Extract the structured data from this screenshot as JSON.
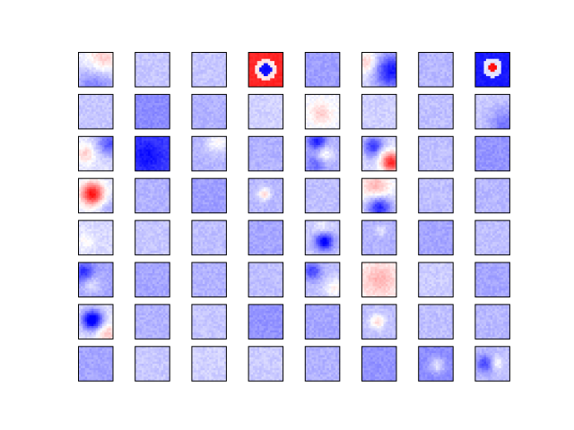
{
  "chart_data": {
    "type": "heatmap",
    "title": "",
    "layout": {
      "rows": 8,
      "cols": 8
    },
    "colormap": {
      "negative": "#0000ff",
      "zero": "#ffffff",
      "positive": "#ff0000"
    },
    "tick_labels": "none",
    "axis_frame": "black",
    "tiles": [
      {
        "row": 0,
        "col": 0,
        "base": -0.08,
        "blobs": [
          {
            "cx": 0.7,
            "cy": 0.25,
            "s": 0.35,
            "a": 0.35
          },
          {
            "cx": 0.5,
            "cy": 0.95,
            "s": 0.45,
            "a": -0.45
          }
        ]
      },
      {
        "row": 0,
        "col": 1,
        "base": -0.22
      },
      {
        "row": 0,
        "col": 2,
        "base": -0.22
      },
      {
        "row": 0,
        "col": 3,
        "base": 0.0,
        "ring": {
          "cx": 0.5,
          "cy": 0.5,
          "center": -0.95,
          "ring": 0.1,
          "outer": 0.85,
          "r1": 0.18,
          "r2": 0.32
        }
      },
      {
        "row": 0,
        "col": 4,
        "base": -0.38
      },
      {
        "row": 0,
        "col": 5,
        "base": -0.12,
        "blobs": [
          {
            "cx": 0.15,
            "cy": 0.3,
            "s": 0.22,
            "a": 0.35
          },
          {
            "cx": 0.85,
            "cy": 0.55,
            "s": 0.35,
            "a": -0.8
          }
        ]
      },
      {
        "row": 0,
        "col": 6,
        "base": -0.28
      },
      {
        "row": 0,
        "col": 7,
        "base": -0.1,
        "ring": {
          "cx": 0.5,
          "cy": 0.45,
          "center": 0.95,
          "ring": -0.1,
          "outer": -0.9,
          "r1": 0.12,
          "r2": 0.28
        }
      },
      {
        "row": 1,
        "col": 0,
        "base": -0.22
      },
      {
        "row": 1,
        "col": 1,
        "base": -0.45
      },
      {
        "row": 1,
        "col": 2,
        "base": -0.3
      },
      {
        "row": 1,
        "col": 3,
        "base": -0.18
      },
      {
        "row": 1,
        "col": 4,
        "base": -0.05,
        "blobs": [
          {
            "cx": 0.45,
            "cy": 0.55,
            "s": 0.22,
            "a": 0.25
          }
        ]
      },
      {
        "row": 1,
        "col": 5,
        "base": -0.18
      },
      {
        "row": 1,
        "col": 6,
        "base": -0.25
      },
      {
        "row": 1,
        "col": 7,
        "base": -0.2,
        "blobs": [
          {
            "cx": 0.9,
            "cy": 0.9,
            "s": 0.35,
            "a": -0.35
          }
        ]
      },
      {
        "row": 2,
        "col": 0,
        "base": -0.12,
        "blobs": [
          {
            "cx": 0.2,
            "cy": 0.5,
            "s": 0.2,
            "a": 0.3
          },
          {
            "cx": 0.9,
            "cy": 0.2,
            "s": 0.25,
            "a": -0.55
          }
        ]
      },
      {
        "row": 2,
        "col": 1,
        "base": -0.75,
        "blobs": [
          {
            "cx": 0.35,
            "cy": 0.55,
            "s": 0.3,
            "a": -0.2
          }
        ]
      },
      {
        "row": 2,
        "col": 2,
        "base": -0.3,
        "blobs": [
          {
            "cx": 0.75,
            "cy": 0.15,
            "s": 0.25,
            "a": 0.3
          }
        ]
      },
      {
        "row": 2,
        "col": 3,
        "base": -0.3
      },
      {
        "row": 2,
        "col": 4,
        "base": -0.3,
        "blobs": [
          {
            "cx": 0.35,
            "cy": 0.15,
            "s": 0.18,
            "a": -0.6
          },
          {
            "cx": 0.55,
            "cy": 0.5,
            "s": 0.18,
            "a": 0.35
          },
          {
            "cx": 0.3,
            "cy": 0.8,
            "s": 0.2,
            "a": -0.3
          }
        ]
      },
      {
        "row": 2,
        "col": 5,
        "base": -0.15,
        "blobs": [
          {
            "cx": 0.35,
            "cy": 0.3,
            "s": 0.2,
            "a": -0.7
          },
          {
            "cx": 0.85,
            "cy": 0.75,
            "s": 0.2,
            "a": 1.0
          },
          {
            "cx": 0.55,
            "cy": 0.45,
            "s": 0.15,
            "a": 0.2
          }
        ]
      },
      {
        "row": 2,
        "col": 6,
        "base": -0.25
      },
      {
        "row": 2,
        "col": 7,
        "base": -0.42
      },
      {
        "row": 3,
        "col": 0,
        "base": -0.1,
        "blobs": [
          {
            "cx": 0.4,
            "cy": 0.45,
            "s": 0.22,
            "a": 1.05
          },
          {
            "cx": 0.9,
            "cy": 0.9,
            "s": 0.25,
            "a": -0.2
          }
        ]
      },
      {
        "row": 3,
        "col": 1,
        "base": -0.3
      },
      {
        "row": 3,
        "col": 2,
        "base": -0.38
      },
      {
        "row": 3,
        "col": 3,
        "base": -0.28,
        "blobs": [
          {
            "cx": 0.45,
            "cy": 0.45,
            "s": 0.12,
            "a": 0.45
          }
        ]
      },
      {
        "row": 3,
        "col": 4,
        "base": -0.25
      },
      {
        "row": 3,
        "col": 5,
        "base": -0.1,
        "blobs": [
          {
            "cx": 0.4,
            "cy": 0.25,
            "s": 0.3,
            "a": 0.4
          },
          {
            "cx": 0.5,
            "cy": 0.85,
            "s": 0.25,
            "a": -0.8
          }
        ]
      },
      {
        "row": 3,
        "col": 6,
        "base": -0.25
      },
      {
        "row": 3,
        "col": 7,
        "base": -0.28
      },
      {
        "row": 4,
        "col": 0,
        "base": -0.15,
        "blobs": [
          {
            "cx": 0.2,
            "cy": 0.6,
            "s": 0.2,
            "a": 0.15
          }
        ]
      },
      {
        "row": 4,
        "col": 1,
        "base": -0.22
      },
      {
        "row": 4,
        "col": 2,
        "base": -0.25
      },
      {
        "row": 4,
        "col": 3,
        "base": -0.35
      },
      {
        "row": 4,
        "col": 4,
        "base": -0.22,
        "blobs": [
          {
            "cx": 0.55,
            "cy": 0.6,
            "s": 0.18,
            "a": -0.85
          },
          {
            "cx": 0.5,
            "cy": 0.25,
            "s": 0.18,
            "a": 0.2
          }
        ]
      },
      {
        "row": 4,
        "col": 5,
        "base": -0.3,
        "blobs": [
          {
            "cx": 0.55,
            "cy": 0.3,
            "s": 0.12,
            "a": 0.2
          }
        ]
      },
      {
        "row": 4,
        "col": 6,
        "base": -0.35
      },
      {
        "row": 4,
        "col": 7,
        "base": -0.25
      },
      {
        "row": 5,
        "col": 0,
        "base": -0.35,
        "blobs": [
          {
            "cx": 0.15,
            "cy": 0.3,
            "s": 0.2,
            "a": -0.5
          },
          {
            "cx": 0.35,
            "cy": 0.6,
            "s": 0.2,
            "a": 0.25
          }
        ]
      },
      {
        "row": 5,
        "col": 1,
        "base": -0.35
      },
      {
        "row": 5,
        "col": 2,
        "base": -0.3
      },
      {
        "row": 5,
        "col": 3,
        "base": -0.25
      },
      {
        "row": 5,
        "col": 4,
        "base": -0.25,
        "blobs": [
          {
            "cx": 0.2,
            "cy": 0.25,
            "s": 0.18,
            "a": -0.5
          },
          {
            "cx": 0.85,
            "cy": 0.75,
            "s": 0.2,
            "a": 0.3
          }
        ]
      },
      {
        "row": 5,
        "col": 5,
        "base": 0.05,
        "blobs": [
          {
            "cx": 0.5,
            "cy": 0.5,
            "s": 0.3,
            "a": 0.25
          }
        ]
      },
      {
        "row": 5,
        "col": 6,
        "base": -0.2
      },
      {
        "row": 5,
        "col": 7,
        "base": -0.35
      },
      {
        "row": 6,
        "col": 0,
        "base": -0.12,
        "blobs": [
          {
            "cx": 0.4,
            "cy": 0.45,
            "s": 0.2,
            "a": -1.05
          },
          {
            "cx": 0.85,
            "cy": 0.85,
            "s": 0.22,
            "a": 0.35
          }
        ]
      },
      {
        "row": 6,
        "col": 1,
        "base": -0.3
      },
      {
        "row": 6,
        "col": 2,
        "base": -0.22
      },
      {
        "row": 6,
        "col": 3,
        "base": -0.42
      },
      {
        "row": 6,
        "col": 4,
        "base": -0.35
      },
      {
        "row": 6,
        "col": 5,
        "base": -0.25,
        "blobs": [
          {
            "cx": 0.45,
            "cy": 0.5,
            "s": 0.15,
            "a": 0.4
          }
        ]
      },
      {
        "row": 6,
        "col": 6,
        "base": -0.25
      },
      {
        "row": 6,
        "col": 7,
        "base": -0.28
      },
      {
        "row": 7,
        "col": 0,
        "base": -0.35
      },
      {
        "row": 7,
        "col": 1,
        "base": -0.22
      },
      {
        "row": 7,
        "col": 2,
        "base": -0.18
      },
      {
        "row": 7,
        "col": 3,
        "base": -0.2
      },
      {
        "row": 7,
        "col": 4,
        "base": -0.3
      },
      {
        "row": 7,
        "col": 5,
        "base": -0.42
      },
      {
        "row": 7,
        "col": 6,
        "base": -0.45,
        "blobs": [
          {
            "cx": 0.55,
            "cy": 0.55,
            "s": 0.15,
            "a": 0.35
          }
        ]
      },
      {
        "row": 7,
        "col": 7,
        "base": -0.25,
        "blobs": [
          {
            "cx": 0.3,
            "cy": 0.5,
            "s": 0.18,
            "a": -0.5
          },
          {
            "cx": 0.6,
            "cy": 0.5,
            "s": 0.15,
            "a": 0.3
          }
        ]
      }
    ]
  }
}
